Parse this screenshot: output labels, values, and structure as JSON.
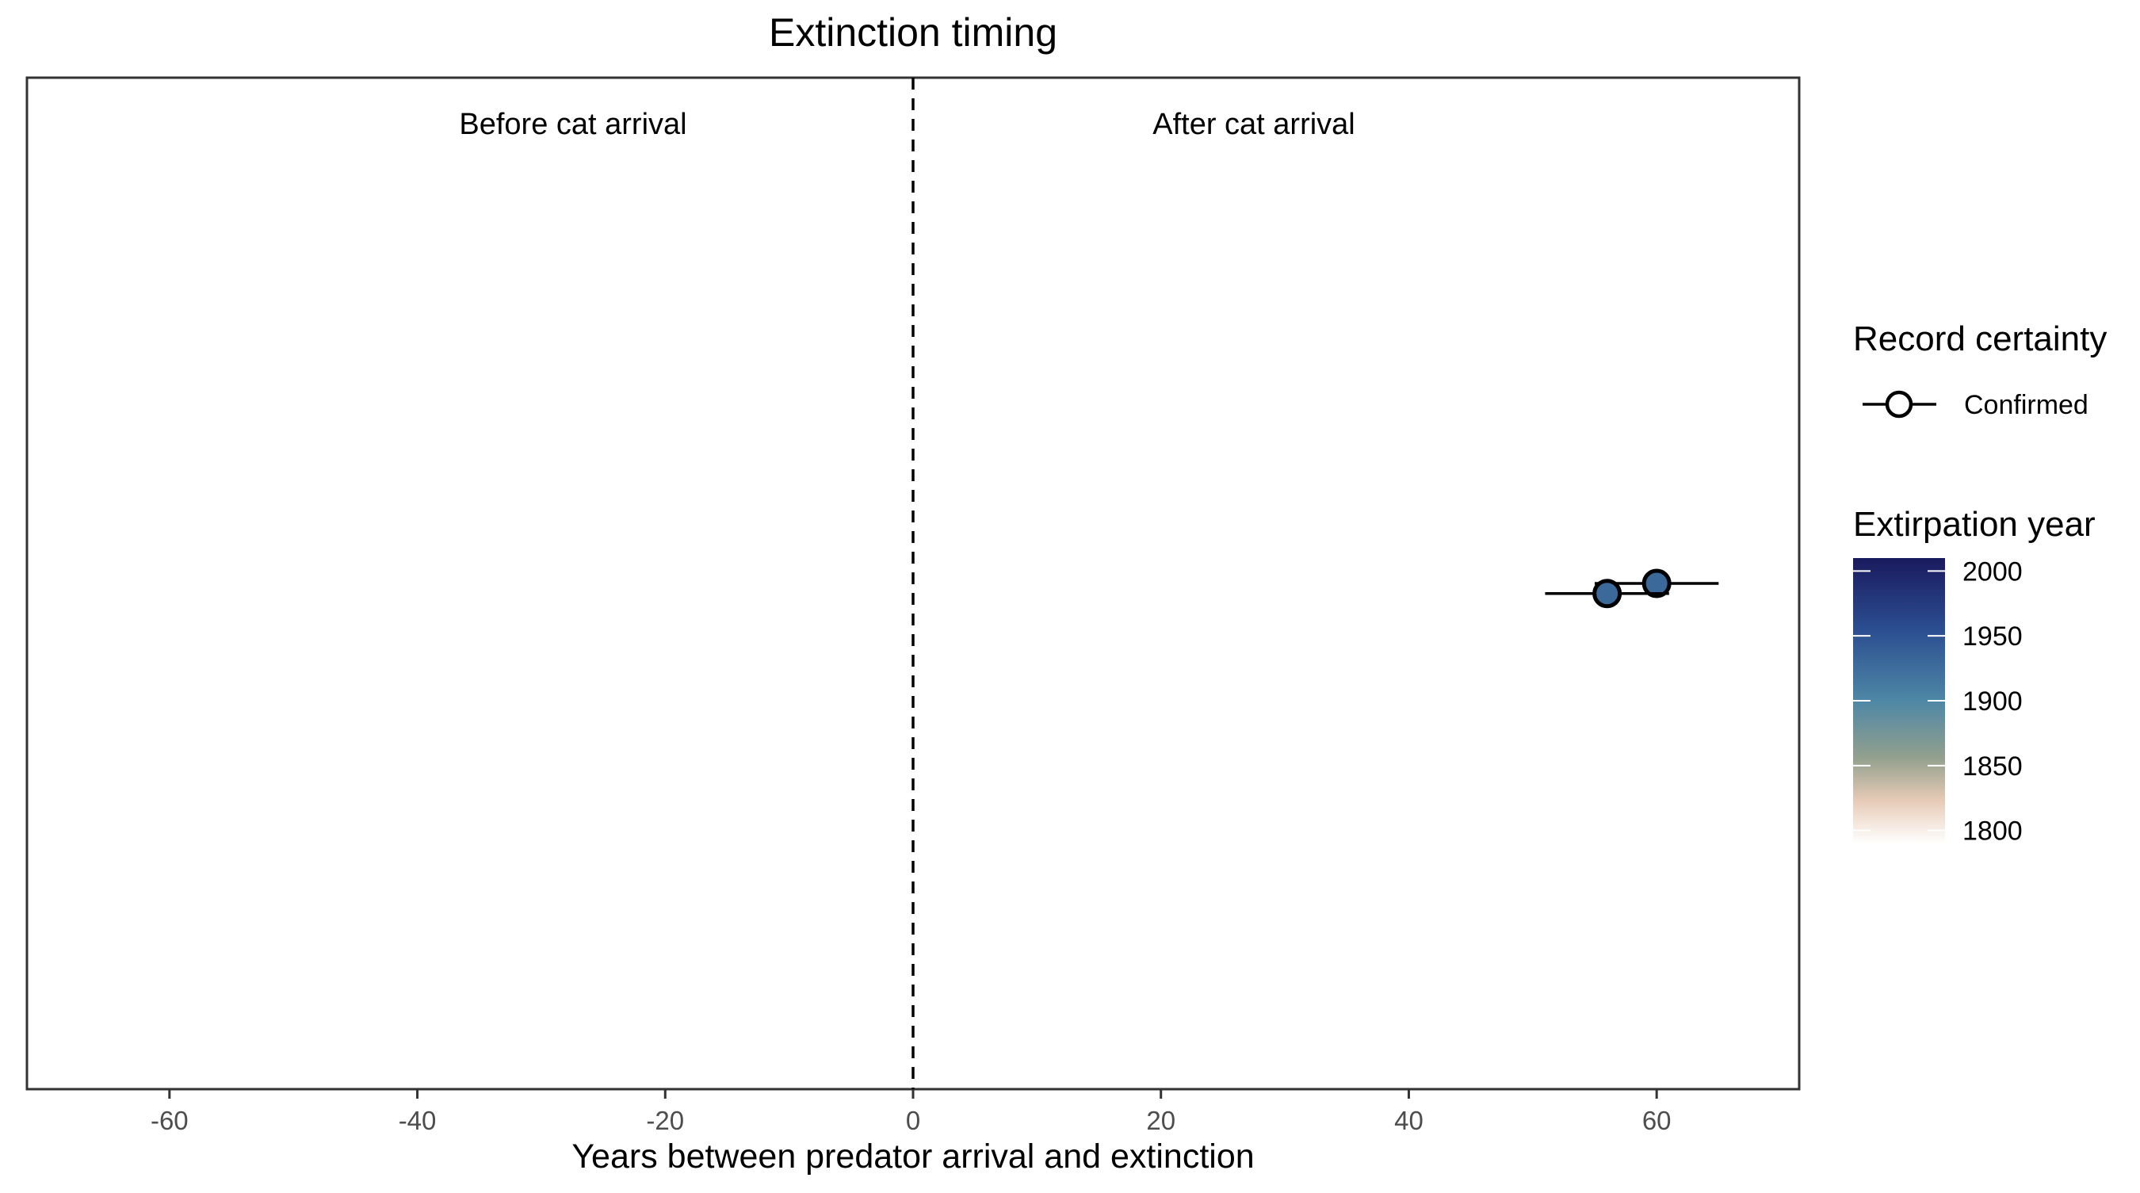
{
  "chart_data": {
    "type": "scatter",
    "title": "Extinction timing",
    "xlabel": "Years between predator arrival and extinction",
    "ylabel": "",
    "xlim": [
      -71.5,
      71.5
    ],
    "ylim": [
      0,
      1
    ],
    "xticks": [
      -60,
      -40,
      -20,
      0,
      20,
      40,
      60
    ],
    "grid": false,
    "reference_line": {
      "x": 0,
      "style": "dashed"
    },
    "annotations": [
      {
        "text": "Before cat arrival",
        "x": -27.5
      },
      {
        "text": "After cat arrival",
        "x": 27.5
      }
    ],
    "series": [
      {
        "name": "Confirmed",
        "points": [
          {
            "x": 60,
            "xmin": 55,
            "xmax": 65,
            "y": 0.5,
            "extirpation_year": 1935
          },
          {
            "x": 56,
            "xmin": 51,
            "xmax": 61,
            "y": 0.49,
            "extirpation_year": 1932
          }
        ]
      }
    ],
    "legend": {
      "placement": "right",
      "shape_title": "Record certainty",
      "shape_entries": [
        "Confirmed"
      ],
      "color_title": "Extirpation year",
      "color_ticks": [
        "2000",
        "1950",
        "1900",
        "1850",
        "1800"
      ],
      "color_range": [
        1790,
        2010
      ]
    },
    "colors": {
      "point_fill": "#3b6a9a",
      "gradient": [
        "#1a1a5e",
        "#2a4a8c",
        "#4a7fa6",
        "#8f9d8c",
        "#e8cdb9",
        "#ffffff"
      ]
    }
  }
}
